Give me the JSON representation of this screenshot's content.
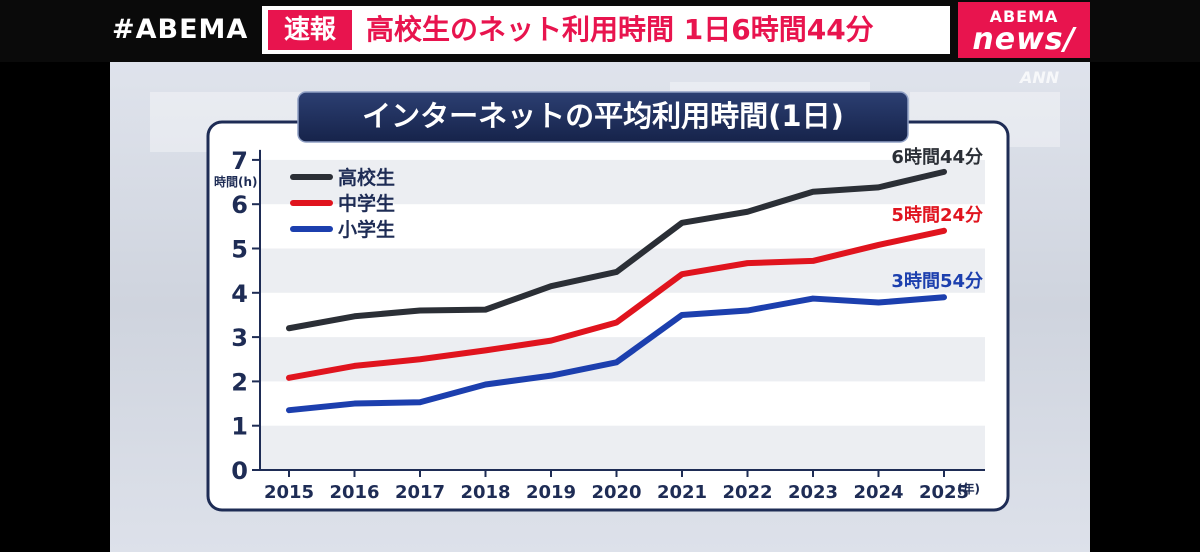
{
  "header": {
    "brand": "#ABEMA",
    "breaking_label": "速報",
    "headline": "高校生のネット利用時間 1日6時間44分",
    "logo_top": "ABEMA",
    "logo_bottom": "news/",
    "watermark": "ANN"
  },
  "colors": {
    "accent": "#e8144e",
    "frame": "#1e2c55",
    "high": "#2b2f36",
    "middle": "#e0141e",
    "elementary": "#1c3fae"
  },
  "chart_data": {
    "type": "line",
    "title": "インターネットの平均利用時間(1日)",
    "ylabel": "時間(h)",
    "xlabel": "(年)",
    "ylim": [
      0,
      7
    ],
    "yticks": [
      "0",
      "1",
      "2",
      "3",
      "4",
      "5",
      "6",
      "7"
    ],
    "categories": [
      "2015",
      "2016",
      "2017",
      "2018",
      "2019",
      "2020",
      "2021",
      "2022",
      "2023",
      "2024",
      "2025"
    ],
    "series": [
      {
        "name": "高校生",
        "values": [
          3.2,
          3.47,
          3.6,
          3.62,
          4.15,
          4.47,
          5.58,
          5.83,
          6.28,
          6.38,
          6.73
        ],
        "end_label": "6時間44分"
      },
      {
        "name": "中学生",
        "values": [
          2.08,
          2.35,
          2.5,
          2.7,
          2.92,
          3.33,
          4.42,
          4.67,
          4.72,
          5.08,
          5.4
        ],
        "end_label": "5時間24分"
      },
      {
        "name": "小学生",
        "values": [
          1.35,
          1.5,
          1.53,
          1.93,
          2.13,
          2.43,
          3.5,
          3.6,
          3.87,
          3.78,
          3.9
        ],
        "end_label": "3時間54分"
      }
    ],
    "legend": "top-left",
    "grid": "alternating bands"
  }
}
